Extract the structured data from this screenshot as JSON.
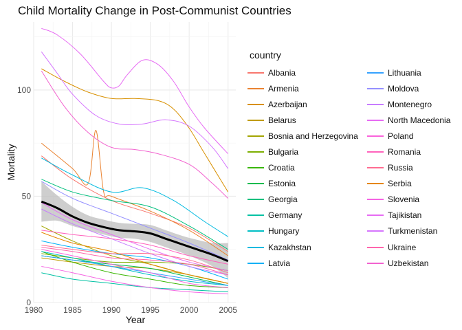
{
  "chart_data": {
    "type": "line",
    "title": "Child Mortality Change in Post-Communist Countries",
    "xlabel": "Year",
    "ylabel": "Mortality",
    "xlim": [
      1980,
      2006
    ],
    "ylim": [
      0,
      132
    ],
    "x_ticks": [
      1980,
      1985,
      1990,
      1995,
      2000,
      2005
    ],
    "y_ticks": [
      0,
      50,
      100
    ],
    "grid": true,
    "legend": {
      "title": "country",
      "position": "right",
      "columns": 2
    },
    "series": [
      {
        "name": "Albania",
        "color": "#F8766D",
        "points": [
          [
            1981,
            69
          ],
          [
            1985,
            58
          ],
          [
            1990,
            48
          ],
          [
            1995,
            42
          ],
          [
            2000,
            35
          ],
          [
            2005,
            24
          ]
        ]
      },
      {
        "name": "Armenia",
        "color": "#EA8331",
        "points": [
          [
            1981,
            75
          ],
          [
            1985,
            63
          ],
          [
            1987,
            56
          ],
          [
            1988,
            81
          ],
          [
            1989,
            52
          ],
          [
            1990,
            50
          ],
          [
            1995,
            43
          ],
          [
            2000,
            34
          ],
          [
            2005,
            22
          ]
        ]
      },
      {
        "name": "Azerbaijan",
        "color": "#D89000",
        "points": [
          [
            1981,
            110
          ],
          [
            1984,
            104
          ],
          [
            1987,
            99
          ],
          [
            1990,
            96
          ],
          [
            1993,
            96
          ],
          [
            1996,
            95
          ],
          [
            1998,
            91
          ],
          [
            2000,
            82
          ],
          [
            2002,
            70
          ],
          [
            2005,
            52
          ]
        ]
      },
      {
        "name": "Belarus",
        "color": "#C09B00",
        "points": [
          [
            1981,
            21
          ],
          [
            1985,
            19
          ],
          [
            1990,
            17
          ],
          [
            1995,
            16
          ],
          [
            2000,
            13
          ],
          [
            2005,
            9
          ]
        ]
      },
      {
        "name": "Bosnia and Herzegovina",
        "color": "#A3A500",
        "points": [
          [
            1981,
            36
          ],
          [
            1985,
            29
          ],
          [
            1990,
            22
          ],
          [
            1995,
            18
          ],
          [
            2000,
            13
          ],
          [
            2005,
            9
          ]
        ]
      },
      {
        "name": "Bulgaria",
        "color": "#7CAE00",
        "points": [
          [
            1981,
            23
          ],
          [
            1985,
            21
          ],
          [
            1990,
            19
          ],
          [
            1995,
            19
          ],
          [
            2000,
            18
          ],
          [
            2005,
            15
          ]
        ]
      },
      {
        "name": "Croatia",
        "color": "#39B600",
        "points": [
          [
            1981,
            24
          ],
          [
            1985,
            19
          ],
          [
            1990,
            14
          ],
          [
            1995,
            11
          ],
          [
            2000,
            8
          ],
          [
            2005,
            7
          ]
        ]
      },
      {
        "name": "Estonia",
        "color": "#00BB4E",
        "points": [
          [
            1981,
            22
          ],
          [
            1985,
            20
          ],
          [
            1990,
            18
          ],
          [
            1995,
            16
          ],
          [
            2000,
            12
          ],
          [
            2005,
            8
          ]
        ]
      },
      {
        "name": "Georgia",
        "color": "#00BF7D",
        "points": [
          [
            1981,
            58
          ],
          [
            1985,
            52
          ],
          [
            1990,
            48
          ],
          [
            1995,
            45
          ],
          [
            2000,
            36
          ],
          [
            2005,
            25
          ]
        ]
      },
      {
        "name": "Germany",
        "color": "#00C1A3",
        "points": [
          [
            1981,
            14
          ],
          [
            1985,
            11
          ],
          [
            1990,
            9
          ],
          [
            1995,
            7
          ],
          [
            2000,
            6
          ],
          [
            2005,
            5
          ]
        ]
      },
      {
        "name": "Hungary",
        "color": "#00BFC4",
        "points": [
          [
            1981,
            24
          ],
          [
            1985,
            21
          ],
          [
            1990,
            17
          ],
          [
            1995,
            13
          ],
          [
            2000,
            10
          ],
          [
            2005,
            8
          ]
        ]
      },
      {
        "name": "Kazakhstan",
        "color": "#00BAE0",
        "points": [
          [
            1981,
            68
          ],
          [
            1985,
            60
          ],
          [
            1990,
            52
          ],
          [
            1994,
            54
          ],
          [
            1998,
            48
          ],
          [
            2002,
            38
          ],
          [
            2005,
            31
          ]
        ]
      },
      {
        "name": "Latvia",
        "color": "#00B0F6",
        "points": [
          [
            1981,
            29
          ],
          [
            1985,
            26
          ],
          [
            1990,
            23
          ],
          [
            1995,
            21
          ],
          [
            2000,
            17
          ],
          [
            2005,
            11
          ]
        ]
      },
      {
        "name": "Lithuania",
        "color": "#35A2FF",
        "points": [
          [
            1981,
            22
          ],
          [
            1985,
            20
          ],
          [
            1990,
            17
          ],
          [
            1995,
            14
          ],
          [
            2000,
            11
          ],
          [
            2005,
            8
          ]
        ]
      },
      {
        "name": "Moldova",
        "color": "#9590FF",
        "points": [
          [
            1981,
            57
          ],
          [
            1985,
            49
          ],
          [
            1990,
            42
          ],
          [
            1995,
            35
          ],
          [
            2000,
            28
          ],
          [
            2005,
            20
          ]
        ]
      },
      {
        "name": "Montenegro",
        "color": "#C77CFF",
        "points": [
          [
            1981,
            44
          ],
          [
            1985,
            37
          ],
          [
            1990,
            30
          ],
          [
            1995,
            23
          ],
          [
            2000,
            17
          ],
          [
            2005,
            13
          ]
        ]
      },
      {
        "name": "North Macedonia",
        "color": "#E76BF3",
        "points": [
          [
            1981,
            47
          ],
          [
            1985,
            39
          ],
          [
            1990,
            32
          ],
          [
            1995,
            25
          ],
          [
            2000,
            19
          ],
          [
            2005,
            15
          ]
        ]
      },
      {
        "name": "Poland",
        "color": "#FA62DB",
        "points": [
          [
            1981,
            25
          ],
          [
            1985,
            22
          ],
          [
            1990,
            18
          ],
          [
            1995,
            14
          ],
          [
            2000,
            9
          ],
          [
            2005,
            7
          ]
        ]
      },
      {
        "name": "Romania",
        "color": "#FF62BC",
        "points": [
          [
            1981,
            34
          ],
          [
            1985,
            32
          ],
          [
            1990,
            30
          ],
          [
            1995,
            27
          ],
          [
            2000,
            22
          ],
          [
            2005,
            18
          ]
        ]
      },
      {
        "name": "Russia",
        "color": "#FF6C91",
        "points": [
          [
            1981,
            27
          ],
          [
            1985,
            25
          ],
          [
            1990,
            23
          ],
          [
            1995,
            23
          ],
          [
            2000,
            20
          ],
          [
            2005,
            14
          ]
        ]
      },
      {
        "name": "Serbia",
        "color": "#E58700",
        "points": [
          [
            1981,
            33
          ],
          [
            1985,
            28
          ],
          [
            1990,
            24
          ],
          [
            1995,
            18
          ],
          [
            2000,
            13
          ],
          [
            2005,
            9
          ]
        ]
      },
      {
        "name": "Slovenia",
        "color": "#F564E3",
        "points": [
          [
            1981,
            17
          ],
          [
            1985,
            14
          ],
          [
            1990,
            10
          ],
          [
            1995,
            7
          ],
          [
            2000,
            5
          ],
          [
            2005,
            4
          ]
        ]
      },
      {
        "name": "Tajikistan",
        "color": "#E76BF3",
        "points": [
          [
            1981,
            129
          ],
          [
            1983,
            126
          ],
          [
            1986,
            117
          ],
          [
            1989,
            104
          ],
          [
            1990,
            101
          ],
          [
            1991,
            102
          ],
          [
            1992,
            107
          ],
          [
            1994,
            114
          ],
          [
            1996,
            112
          ],
          [
            1998,
            104
          ],
          [
            2000,
            92
          ],
          [
            2002,
            82
          ],
          [
            2005,
            70
          ]
        ]
      },
      {
        "name": "Turkmenistan",
        "color": "#D575FE",
        "points": [
          [
            1981,
            118
          ],
          [
            1983,
            108
          ],
          [
            1985,
            98
          ],
          [
            1988,
            88
          ],
          [
            1991,
            84
          ],
          [
            1994,
            84
          ],
          [
            1997,
            86
          ],
          [
            2000,
            83
          ],
          [
            2003,
            73
          ],
          [
            2005,
            63
          ]
        ]
      },
      {
        "name": "Ukraine",
        "color": "#FF65AC",
        "points": [
          [
            1981,
            26
          ],
          [
            1985,
            24
          ],
          [
            1990,
            21
          ],
          [
            1995,
            20
          ],
          [
            2000,
            18
          ],
          [
            2005,
            13
          ]
        ]
      },
      {
        "name": "Uzbekistan",
        "color": "#F263CF",
        "points": [
          [
            1981,
            109
          ],
          [
            1984,
            92
          ],
          [
            1987,
            80
          ],
          [
            1990,
            73
          ],
          [
            1993,
            72
          ],
          [
            1996,
            70
          ],
          [
            2000,
            65
          ],
          [
            2003,
            56
          ],
          [
            2005,
            49
          ]
        ]
      }
    ],
    "smooth": {
      "color": "#000000",
      "band_color": "#bebebe",
      "x": [
        1981,
        1983,
        1985,
        1987,
        1989,
        1991,
        1993,
        1995,
        1997,
        1999,
        2001,
        2003,
        2005
      ],
      "y": [
        47.5,
        44.5,
        40.5,
        37.5,
        35.5,
        34,
        33.5,
        32.5,
        30,
        27.5,
        25,
        22.5,
        19.5
      ],
      "lower": [
        38,
        38.5,
        36,
        34,
        32,
        30.5,
        30,
        28.5,
        26,
        23.5,
        20.5,
        17,
        11.5
      ],
      "upper": [
        57,
        50.5,
        45,
        41,
        39,
        37.5,
        37,
        36.5,
        34,
        31.5,
        29.5,
        28,
        28
      ]
    }
  }
}
